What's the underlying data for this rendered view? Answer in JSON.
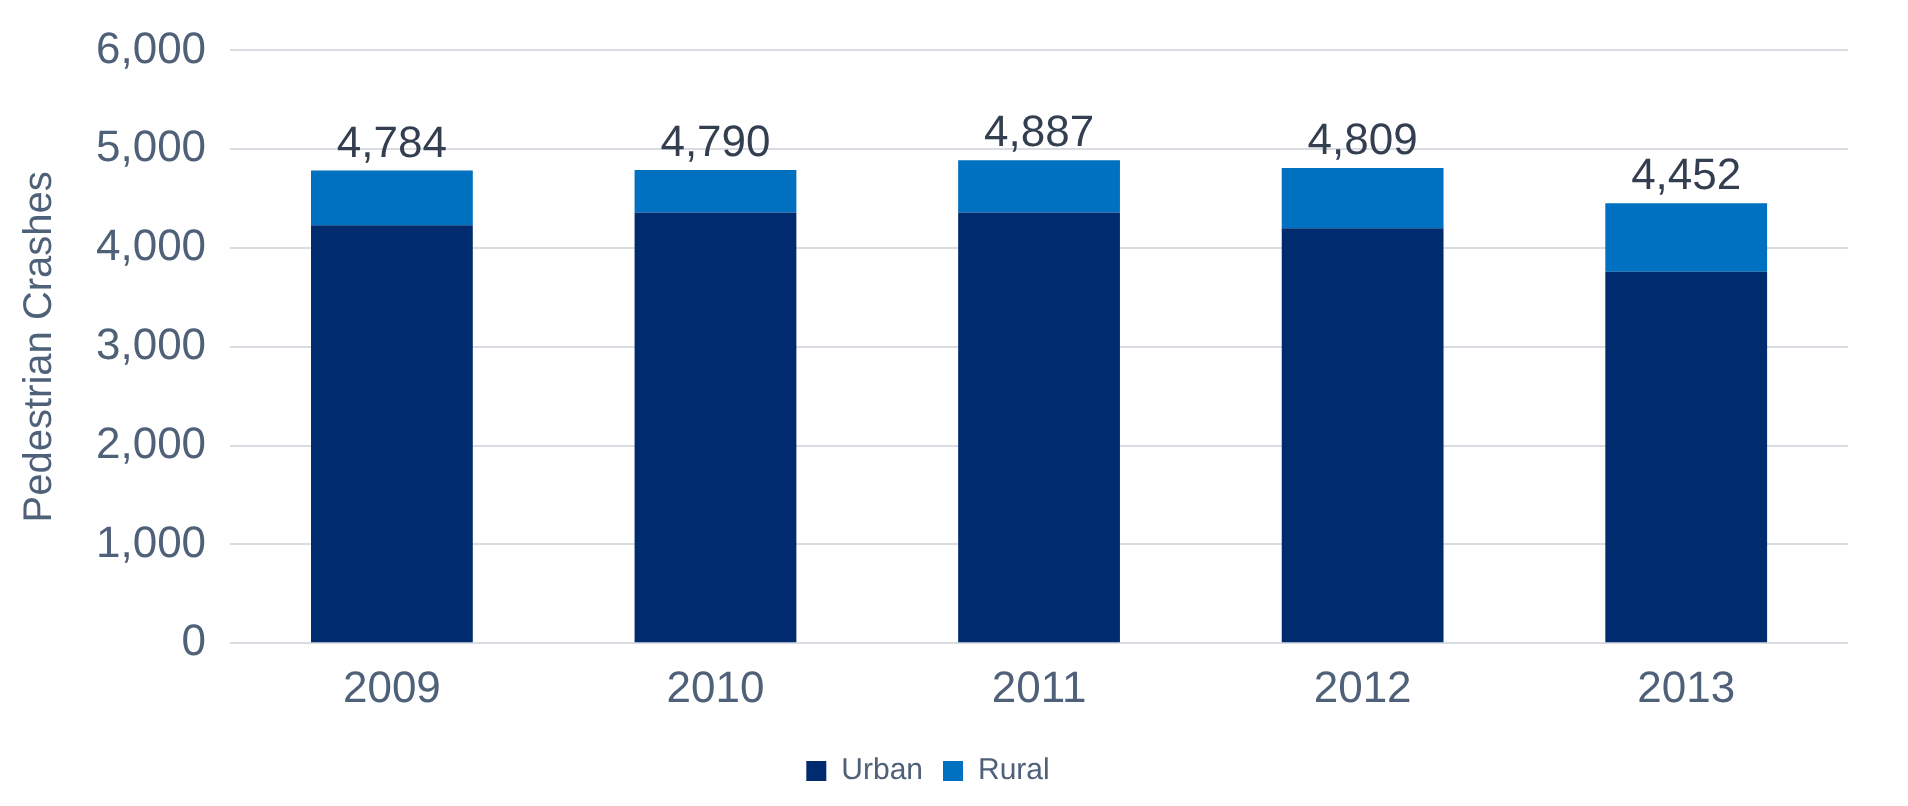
{
  "chart_data": {
    "type": "bar",
    "ylabel": "Pedestrian Crashes",
    "categories": [
      "2009",
      "2010",
      "2011",
      "2012",
      "2013"
    ],
    "stacked": true,
    "series": [
      {
        "name": "Urban",
        "color": "#002b6e",
        "values": [
          4230,
          4360,
          4360,
          4200,
          3760
        ]
      },
      {
        "name": "Rural",
        "color": "#0070c0",
        "values": [
          554,
          430,
          527,
          609,
          692
        ]
      }
    ],
    "totals": [
      "4,784",
      "4,790",
      "4,887",
      "4,809",
      "4,452"
    ],
    "ylim": [
      0,
      6000
    ],
    "yticks": [
      {
        "value": 0,
        "label": "0"
      },
      {
        "value": 1000,
        "label": "1,000"
      },
      {
        "value": 2000,
        "label": "2,000"
      },
      {
        "value": 3000,
        "label": "3,000"
      },
      {
        "value": 4000,
        "label": "4,000"
      },
      {
        "value": 5000,
        "label": "5,000"
      },
      {
        "value": 6000,
        "label": "6,000"
      }
    ],
    "grid": "y",
    "legend": "bottom"
  }
}
